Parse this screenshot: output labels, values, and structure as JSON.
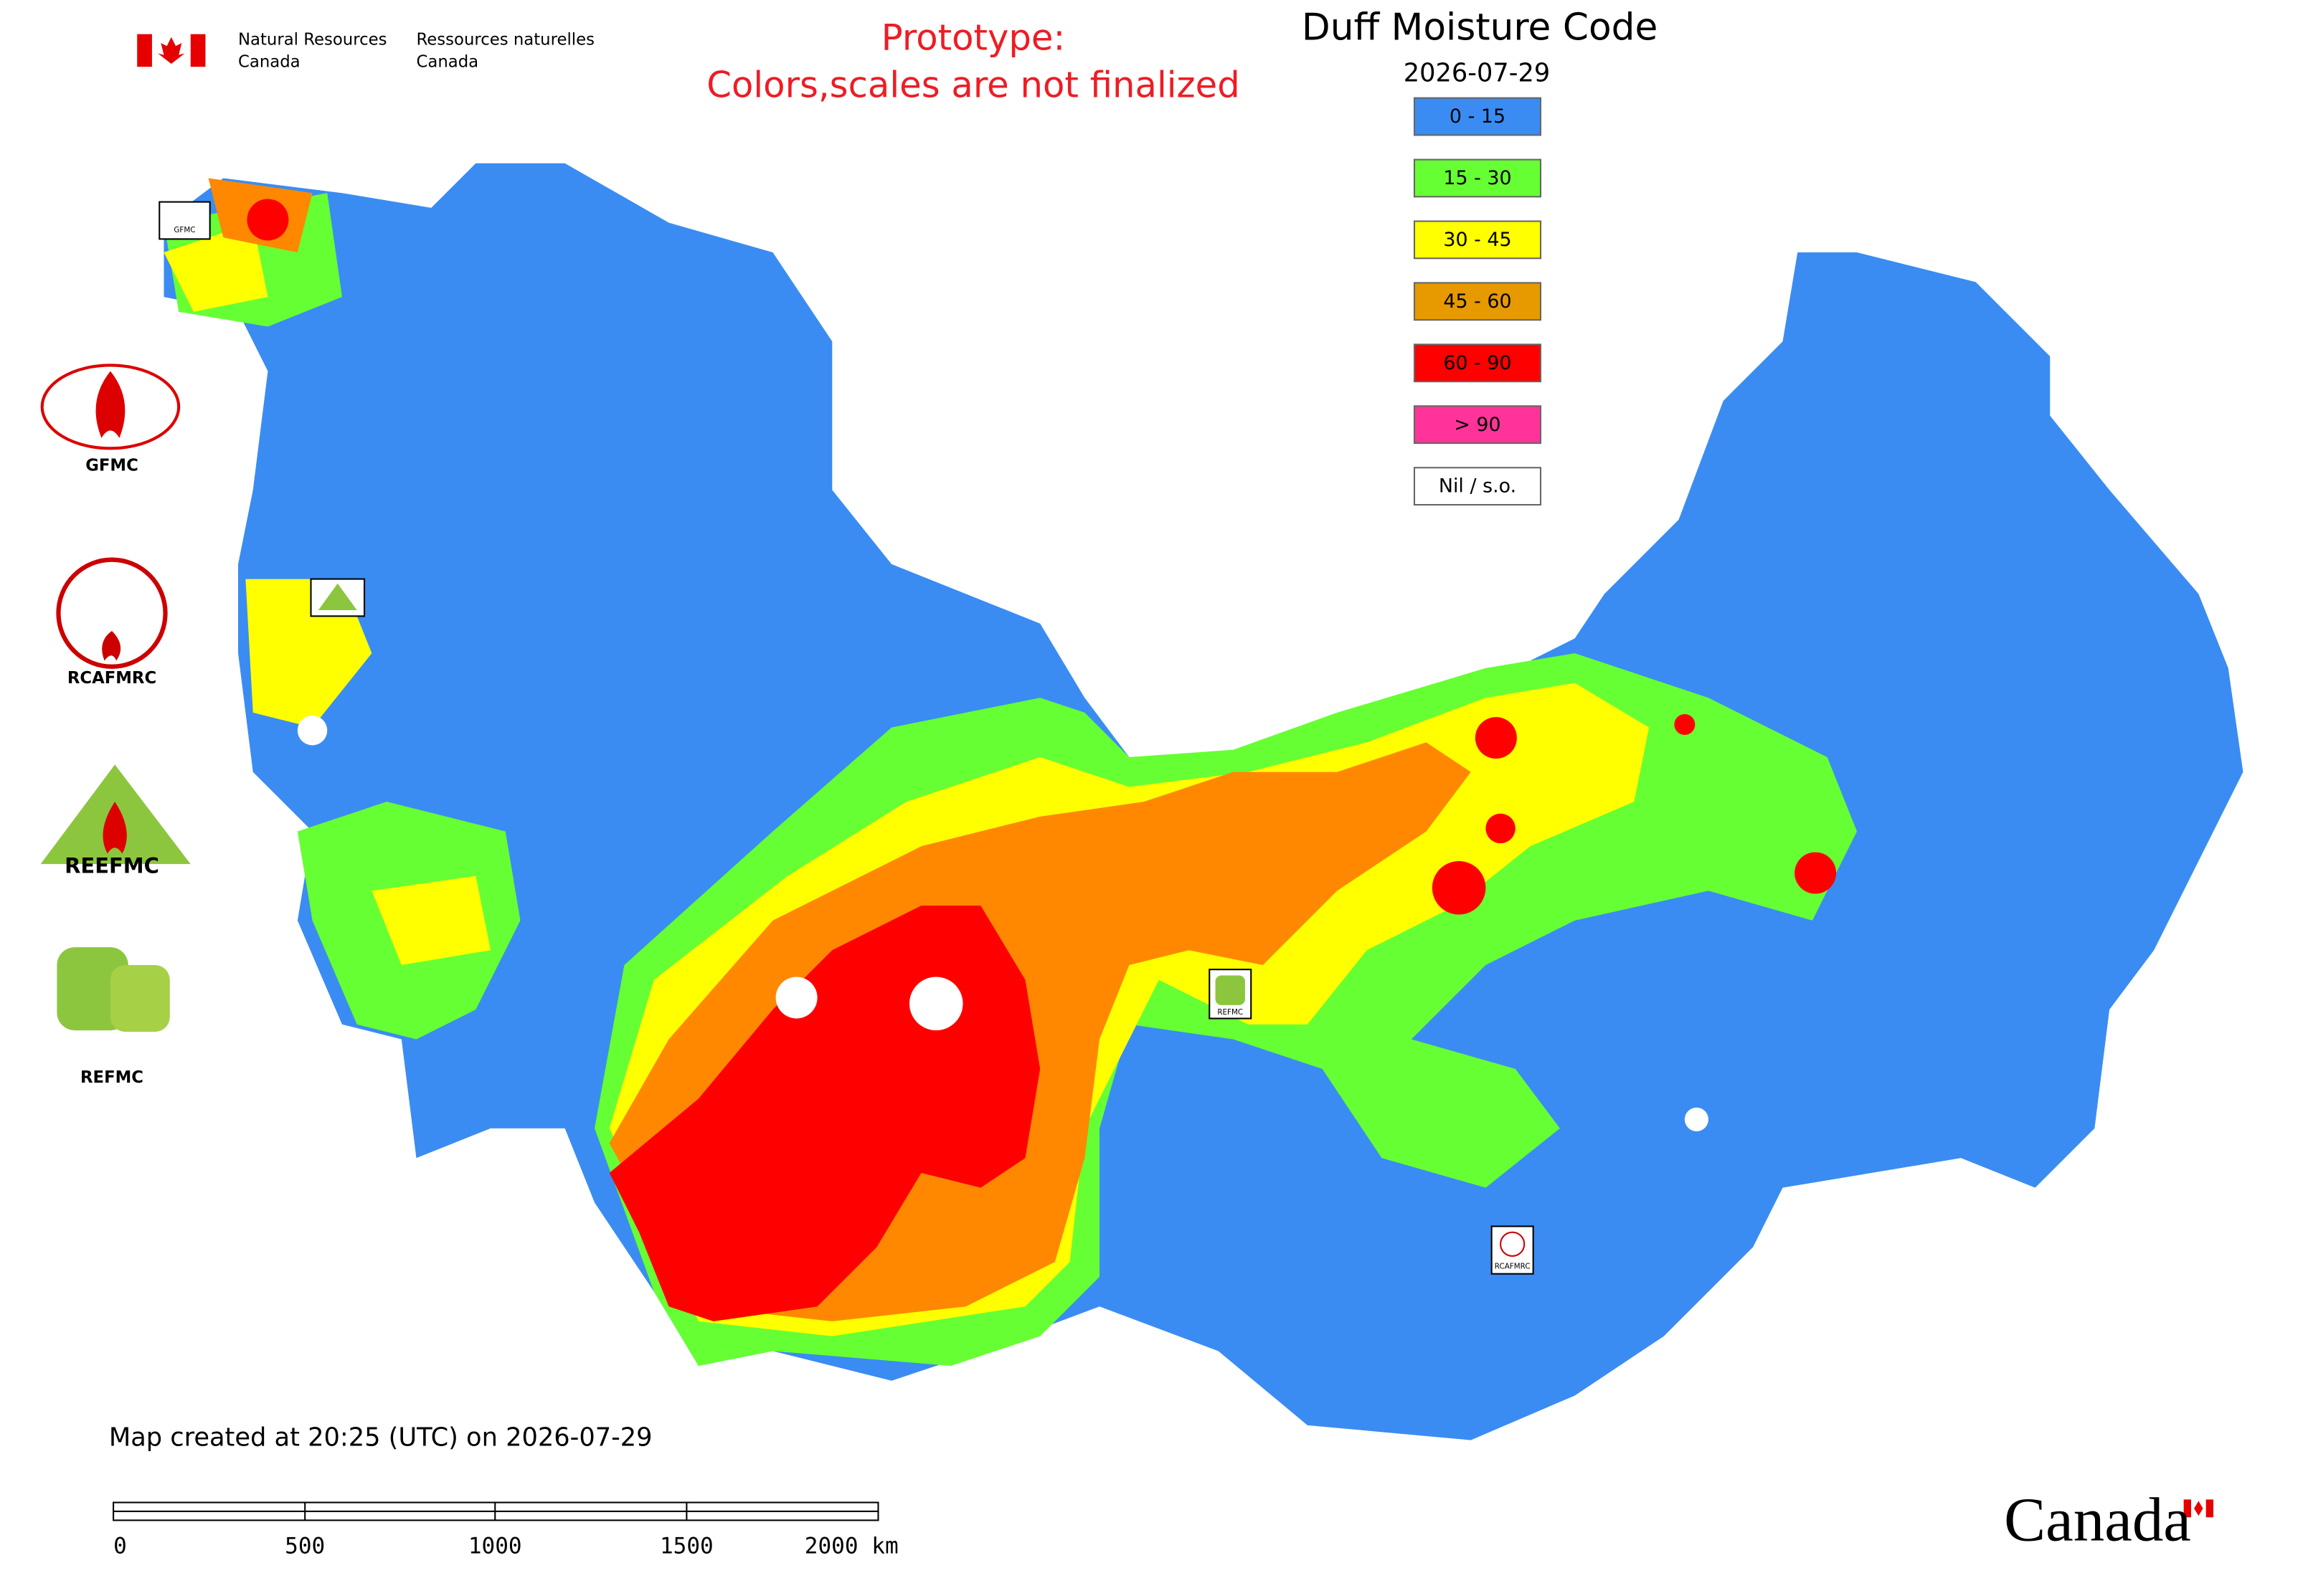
{
  "header": {
    "department_en": [
      "Natural Resources",
      "Canada"
    ],
    "department_fr": [
      "Ressources naturelles",
      "Canada"
    ]
  },
  "notice": [
    "Prototype:",
    "Colors,scales are not finalized"
  ],
  "title": "Duff Moisture Code",
  "date": "2026-07-29",
  "legend": [
    {
      "label": "0 - 15",
      "color": "#3a8cf2"
    },
    {
      "label": "15 - 30",
      "color": "#66ff33"
    },
    {
      "label": "30 - 45",
      "color": "#ffff00"
    },
    {
      "label": "45 - 60",
      "color": "#e69a00"
    },
    {
      "label": "60 - 90",
      "color": "#ff0000"
    },
    {
      "label": "> 90",
      "color": "#ff3399"
    },
    {
      "label": "Nil / s.o.",
      "color": "#ffffff"
    }
  ],
  "logos": [
    "GFMC",
    "RCAFMRC",
    "REFMC"
  ],
  "map_markers": [
    "GFMC",
    "REEFMC",
    "REFMC",
    "RCAFMRC"
  ],
  "timestamp": "Map created at 20:25 (UTC) on 2026-07-29",
  "scale_bar": [
    "0",
    "500",
    "1000",
    "1500",
    "2000 km"
  ],
  "wordmark": "Canada"
}
